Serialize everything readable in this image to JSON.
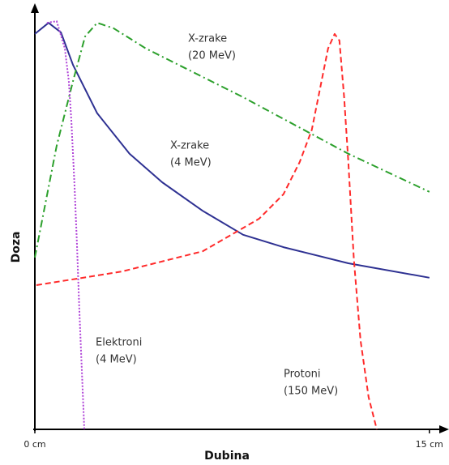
{
  "chart_data": {
    "type": "line",
    "xlabel": "Dubina",
    "ylabel": "Doza",
    "xlim": [
      0,
      15.5
    ],
    "ylim": [
      0,
      100
    ],
    "xticks": [
      {
        "value": 0,
        "label": "0 cm"
      },
      {
        "value": 15,
        "label": "15 cm"
      }
    ],
    "series": [
      {
        "color": "#2e3192",
        "style": "solid",
        "x": [
          0,
          0.52,
          0.99,
          1.45,
          2.37,
          3.6,
          4.84,
          6.38,
          7.92,
          9.45,
          11.92,
          15
        ],
        "values": [
          95.7,
          98.4,
          96.1,
          88.2,
          76.5,
          66.7,
          59.8,
          52.9,
          47.1,
          44.1,
          40.2,
          36.7
        ]
      },
      {
        "color": "#2ca02c",
        "style": "dashdot",
        "x": [
          0,
          0.83,
          1.45,
          1.91,
          2.37,
          2.99,
          4.22,
          7.92,
          11.92,
          15
        ],
        "values": [
          41.6,
          68.6,
          84.3,
          95.1,
          98.4,
          97.1,
          92.2,
          80.4,
          66.7,
          57.5
        ]
      },
      {
        "color": "#ff2a2a",
        "style": "dashed",
        "x": [
          0.06,
          3.3,
          6.38,
          8.53,
          9.45,
          10.07,
          10.53,
          10.84,
          11.15,
          11.4,
          11.58,
          11.76,
          11.92,
          12.13,
          12.38,
          12.69,
          13
        ],
        "values": [
          34.9,
          38.2,
          43.1,
          51.0,
          56.9,
          64.7,
          72.5,
          82.4,
          92.2,
          95.7,
          94.1,
          80.4,
          64.7,
          41.2,
          21.6,
          7.8,
          0
        ]
      },
      {
        "color": "#b044d8",
        "style": "dotted",
        "x": [
          0.46,
          0.83,
          1.14,
          1.29,
          1.39,
          1.51,
          1.6,
          1.69,
          1.79,
          1.88
        ],
        "values": [
          98.4,
          98.8,
          92.2,
          84.3,
          74.5,
          58.8,
          45.1,
          29.4,
          13.7,
          0
        ]
      }
    ],
    "annotations": [
      {
        "lines": [
          "X-zrake",
          "(4 MeV)"
        ]
      },
      {
        "lines": [
          "X-zrake",
          "(20 MeV)"
        ]
      },
      {
        "lines": [
          "Protoni",
          "(150 MeV)"
        ]
      },
      {
        "lines": [
          "Elektroni",
          "(4 MeV)"
        ]
      }
    ]
  }
}
